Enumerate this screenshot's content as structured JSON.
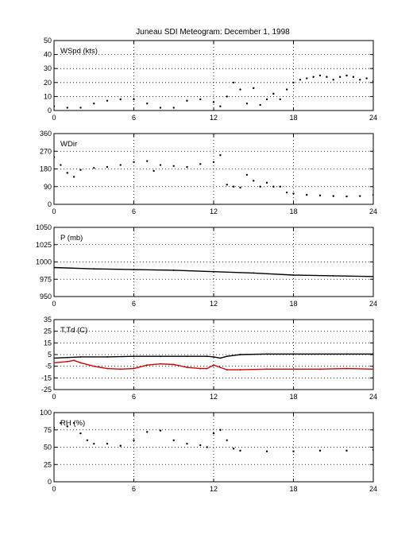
{
  "title": "Juneau SDI Meteogram:  December  1, 1998",
  "colors": {
    "axis": "#000000",
    "grid": "#000000",
    "dewpoint": "#d40000",
    "temperature": "#000000"
  },
  "chart_data": [
    {
      "type": "scatter",
      "label": "WSpd (kts)",
      "xlim": [
        0,
        24
      ],
      "ylim": [
        0,
        50
      ],
      "xticks": [
        0,
        6,
        12,
        18,
        24
      ],
      "yticks": [
        0,
        10,
        20,
        30,
        40,
        50
      ],
      "grid": true,
      "series": [
        {
          "color": "#000000",
          "x": [
            0,
            1,
            2,
            3,
            4,
            5,
            6,
            7,
            8,
            9,
            10,
            11,
            12,
            12.5,
            13,
            13.5,
            14,
            14.5,
            15,
            15.5,
            16,
            16.5,
            17,
            17.5,
            18,
            18.5,
            19,
            19.5,
            20,
            20.5,
            21,
            21.5,
            22,
            22.5,
            23,
            23.5,
            24
          ],
          "y": [
            3,
            2,
            2,
            5,
            7,
            8,
            8,
            5,
            2,
            2,
            7,
            8,
            6,
            3,
            10,
            20,
            15,
            5,
            16,
            4,
            8,
            12,
            8,
            15,
            20,
            22,
            23,
            24,
            25,
            24,
            22,
            24,
            25,
            24,
            22,
            23,
            21
          ]
        }
      ]
    },
    {
      "type": "scatter",
      "label": "WDir",
      "xlim": [
        0,
        24
      ],
      "ylim": [
        0,
        360
      ],
      "xticks": [
        0,
        6,
        12,
        18,
        24
      ],
      "yticks": [
        0,
        90,
        180,
        270,
        360
      ],
      "grid": true,
      "series": [
        {
          "color": "#000000",
          "x": [
            0,
            0.5,
            1,
            1.5,
            2,
            3,
            4,
            5,
            6,
            7,
            7.5,
            8,
            9,
            10,
            11,
            12,
            12.5,
            13,
            13.5,
            14,
            14.5,
            15,
            15.5,
            16,
            16.5,
            17,
            17.5,
            18,
            19,
            20,
            21,
            22,
            23,
            24
          ],
          "y": [
            240,
            200,
            160,
            140,
            175,
            185,
            190,
            200,
            215,
            220,
            170,
            200,
            195,
            190,
            205,
            215,
            250,
            100,
            90,
            85,
            150,
            120,
            90,
            110,
            90,
            90,
            60,
            55,
            48,
            45,
            42,
            40,
            42,
            48
          ]
        }
      ]
    },
    {
      "type": "line",
      "label": "P (mb)",
      "xlim": [
        0,
        24
      ],
      "ylim": [
        950,
        1050
      ],
      "xticks": [
        0,
        6,
        12,
        18,
        24
      ],
      "yticks": [
        950,
        975,
        1000,
        1025,
        1050
      ],
      "grid": true,
      "series": [
        {
          "color": "#000000",
          "x": [
            0,
            3,
            6,
            9,
            12,
            15,
            18,
            21,
            24
          ],
          "y": [
            992,
            990,
            989,
            988,
            986,
            984,
            981,
            980,
            979
          ]
        }
      ]
    },
    {
      "type": "line",
      "label": "T,Td (C)",
      "xlim": [
        0,
        24
      ],
      "ylim": [
        -25,
        35
      ],
      "xticks": [
        0,
        6,
        12,
        18,
        24
      ],
      "yticks": [
        -25,
        -15,
        -5,
        5,
        15,
        25,
        35
      ],
      "grid": true,
      "series": [
        {
          "color": "#000000",
          "x": [
            0,
            1,
            2,
            4,
            6,
            8,
            10,
            11.5,
            12,
            12.5,
            13,
            14,
            16,
            18,
            20,
            22,
            24
          ],
          "y": [
            2,
            2.5,
            3,
            3,
            3.5,
            3.5,
            3.5,
            3.5,
            3,
            2,
            3.5,
            5,
            5.5,
            5.5,
            5.5,
            5.5,
            5.5
          ]
        },
        {
          "color": "#d40000",
          "x": [
            0,
            1,
            1.5,
            2,
            3,
            4,
            5,
            6,
            7,
            8,
            9,
            10,
            11,
            11.5,
            12,
            12.5,
            13,
            14,
            16,
            18,
            20,
            22,
            24
          ],
          "y": [
            -2,
            -1,
            0,
            -2,
            -5,
            -7,
            -7.5,
            -7,
            -4,
            -3,
            -3.5,
            -6,
            -7,
            -7,
            -4,
            -6,
            -8,
            -8,
            -7.5,
            -7.5,
            -7.5,
            -7,
            -7.5
          ]
        }
      ]
    },
    {
      "type": "scatter",
      "label": "RH (%)",
      "xlim": [
        0,
        24
      ],
      "ylim": [
        0,
        100
      ],
      "xticks": [
        0,
        6,
        12,
        18,
        24
      ],
      "yticks": [
        0,
        25,
        50,
        75,
        100
      ],
      "grid": true,
      "series": [
        {
          "color": "#000000",
          "x": [
            0,
            0.5,
            1,
            1.5,
            2,
            2.5,
            3,
            4,
            5,
            6,
            7,
            8,
            9,
            10,
            11,
            11.5,
            12,
            12.5,
            13,
            13.5,
            14,
            16,
            18,
            20,
            22,
            24
          ],
          "y": [
            78,
            85,
            80,
            85,
            70,
            60,
            55,
            55,
            52,
            60,
            72,
            74,
            60,
            55,
            53,
            50,
            70,
            75,
            60,
            48,
            45,
            44,
            44,
            45,
            45,
            46
          ]
        }
      ]
    }
  ]
}
